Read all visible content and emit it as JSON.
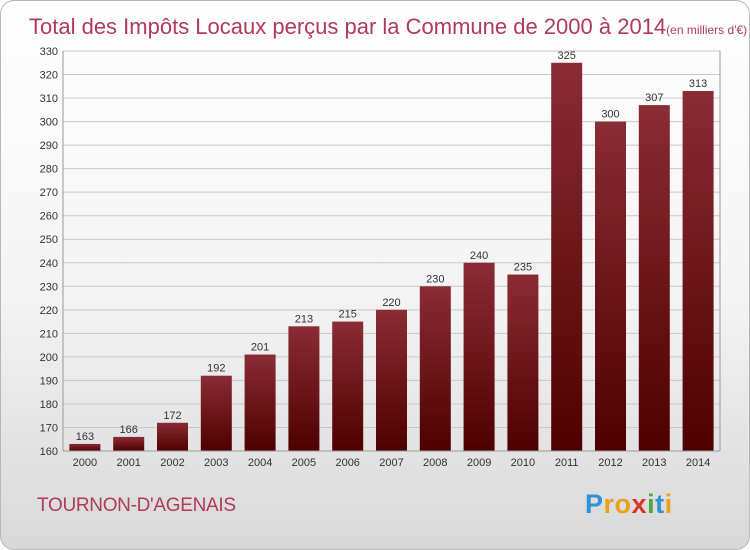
{
  "title": {
    "main": "Total des Impôts Locaux perçus par la Commune de 2000 à 2014",
    "unit": "(en milliers d'€)"
  },
  "commune": "TOURNON-D'AGENAIS",
  "logo": {
    "letters": [
      {
        "char": "P",
        "color": "#2f93d6"
      },
      {
        "char": "r",
        "color": "#e8a21c"
      },
      {
        "char": "o",
        "color": "#e8a21c"
      },
      {
        "char": "x",
        "color": "#d8342c"
      },
      {
        "char": "i",
        "color": "#4aa83c"
      },
      {
        "char": "t",
        "color": "#2f93d6"
      },
      {
        "char": "i",
        "color": "#e8a21c"
      }
    ]
  },
  "colors": {
    "title": "#b03a5a",
    "bar_light": "#8a2c34",
    "bar_dark": "#4e0000",
    "grid": "#c8c8c8"
  },
  "chart_data": {
    "type": "bar",
    "categories": [
      "2000",
      "2001",
      "2002",
      "2003",
      "2004",
      "2005",
      "2006",
      "2007",
      "2008",
      "2009",
      "2010",
      "2011",
      "2012",
      "2013",
      "2014"
    ],
    "values": [
      163,
      166,
      172,
      192,
      201,
      213,
      215,
      220,
      230,
      240,
      235,
      325,
      300,
      307,
      313
    ],
    "data_labels": [
      "163",
      "166",
      "172",
      "192",
      "201",
      "213",
      "215",
      "220",
      "230",
      "240",
      "235",
      "325",
      "300",
      "307",
      "313"
    ],
    "ylim": [
      160,
      330
    ],
    "yticks": [
      "160",
      "170",
      "180",
      "190",
      "200",
      "210",
      "220",
      "230",
      "240",
      "250",
      "260",
      "270",
      "280",
      "290",
      "300",
      "310",
      "320",
      "330"
    ],
    "grid": true,
    "legend": "none"
  }
}
